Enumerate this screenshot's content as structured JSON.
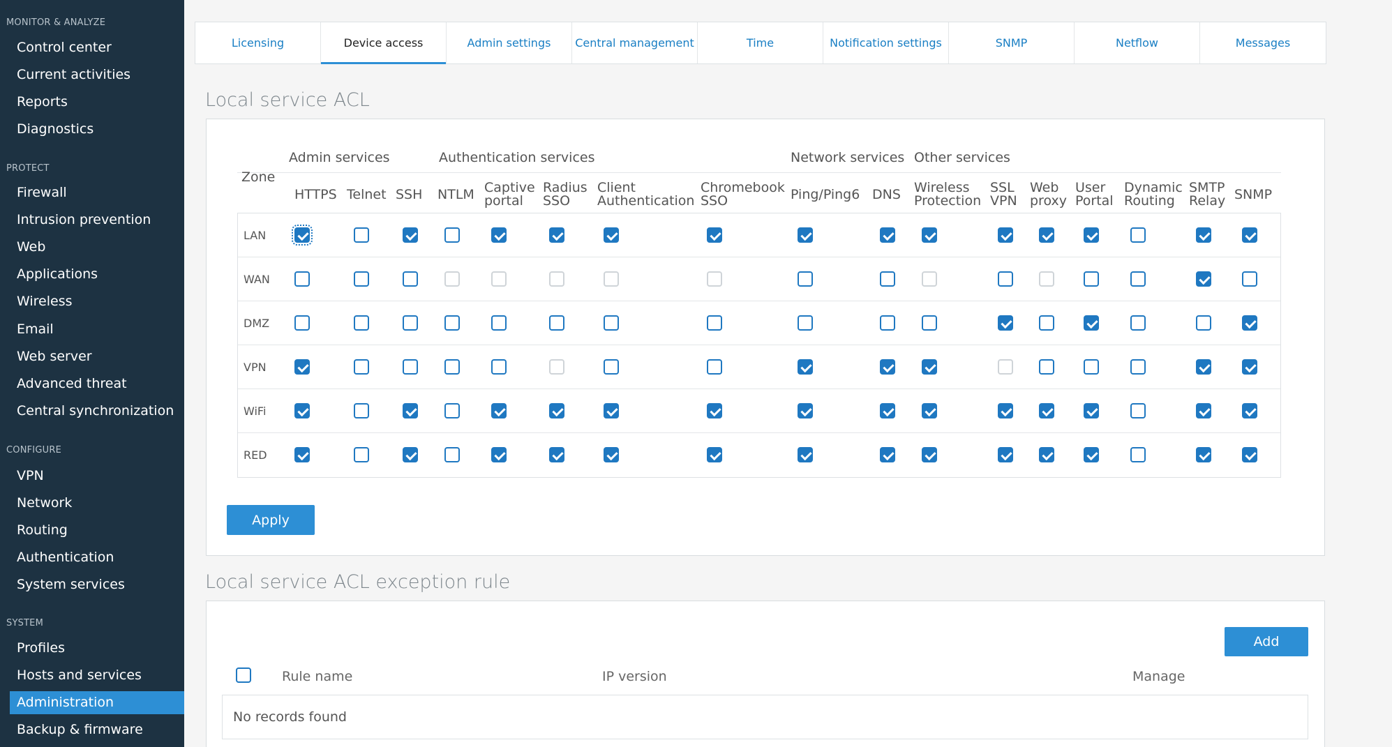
{
  "sidebar": {
    "sections": [
      {
        "title": "MONITOR & ANALYZE",
        "items": [
          "Control center",
          "Current activities",
          "Reports",
          "Diagnostics"
        ]
      },
      {
        "title": "PROTECT",
        "items": [
          "Firewall",
          "Intrusion prevention",
          "Web",
          "Applications",
          "Wireless",
          "Email",
          "Web server",
          "Advanced threat",
          "Central synchronization"
        ]
      },
      {
        "title": "CONFIGURE",
        "items": [
          "VPN",
          "Network",
          "Routing",
          "Authentication",
          "System services"
        ]
      },
      {
        "title": "SYSTEM",
        "items": [
          "Profiles",
          "Hosts and services",
          "Administration",
          "Backup & firmware"
        ]
      }
    ],
    "active_item": "Administration"
  },
  "tabs": [
    {
      "label": "Licensing"
    },
    {
      "label": "Device access",
      "active": true
    },
    {
      "label": "Admin settings"
    },
    {
      "label": "Central management"
    },
    {
      "label": "Time"
    },
    {
      "label": "Notification settings"
    },
    {
      "label": "SNMP"
    },
    {
      "label": "Netflow"
    },
    {
      "label": "Messages"
    }
  ],
  "acl": {
    "title": "Local service ACL",
    "zone_header": "Zone",
    "groups": [
      "Admin services",
      "Authentication services",
      "Network services",
      "Other services"
    ],
    "columns": [
      [
        "HTTPS"
      ],
      [
        "Telnet"
      ],
      [
        "SSH"
      ],
      [
        "NTLM"
      ],
      [
        "Captive",
        "portal"
      ],
      [
        "Radius",
        "SSO"
      ],
      [
        "Client",
        "Authentication"
      ],
      [
        "Chromebook",
        "SSO"
      ],
      [
        "Ping/Ping6"
      ],
      [
        "DNS"
      ],
      [
        "Wireless",
        "Protection"
      ],
      [
        "SSL",
        "VPN"
      ],
      [
        "Web",
        "proxy"
      ],
      [
        "User",
        "Portal"
      ],
      [
        "Dynamic",
        "Routing"
      ],
      [
        "SMTP",
        "Relay"
      ],
      [
        "SNMP"
      ]
    ],
    "rows": [
      {
        "zone": "LAN",
        "values": [
          1,
          0,
          1,
          0,
          1,
          1,
          1,
          1,
          1,
          1,
          1,
          1,
          1,
          1,
          0,
          1,
          1
        ]
      },
      {
        "zone": "WAN",
        "values": [
          0,
          0,
          0,
          2,
          2,
          2,
          2,
          2,
          0,
          0,
          2,
          0,
          2,
          0,
          0,
          1,
          0
        ]
      },
      {
        "zone": "DMZ",
        "values": [
          0,
          0,
          0,
          0,
          0,
          0,
          0,
          0,
          0,
          0,
          0,
          1,
          0,
          1,
          0,
          0,
          1
        ]
      },
      {
        "zone": "VPN",
        "values": [
          1,
          0,
          0,
          0,
          0,
          2,
          0,
          0,
          1,
          1,
          1,
          2,
          0,
          0,
          0,
          1,
          1
        ]
      },
      {
        "zone": "WiFi",
        "values": [
          1,
          0,
          1,
          0,
          1,
          1,
          1,
          1,
          1,
          1,
          1,
          1,
          1,
          1,
          0,
          1,
          1
        ]
      },
      {
        "zone": "RED",
        "values": [
          1,
          0,
          1,
          0,
          1,
          1,
          1,
          1,
          1,
          1,
          1,
          1,
          1,
          1,
          0,
          1,
          1
        ]
      }
    ],
    "apply_label": "Apply"
  },
  "exceptions": {
    "title": "Local service ACL exception rule",
    "add_label": "Add",
    "headers": {
      "rule_name": "Rule name",
      "ip_version": "IP version",
      "manage": "Manage"
    },
    "empty_text": "No records found"
  },
  "colors": {
    "sidebar_bg": "#1d3242",
    "accent": "#2d8fd5",
    "link": "#1a7fc4"
  }
}
